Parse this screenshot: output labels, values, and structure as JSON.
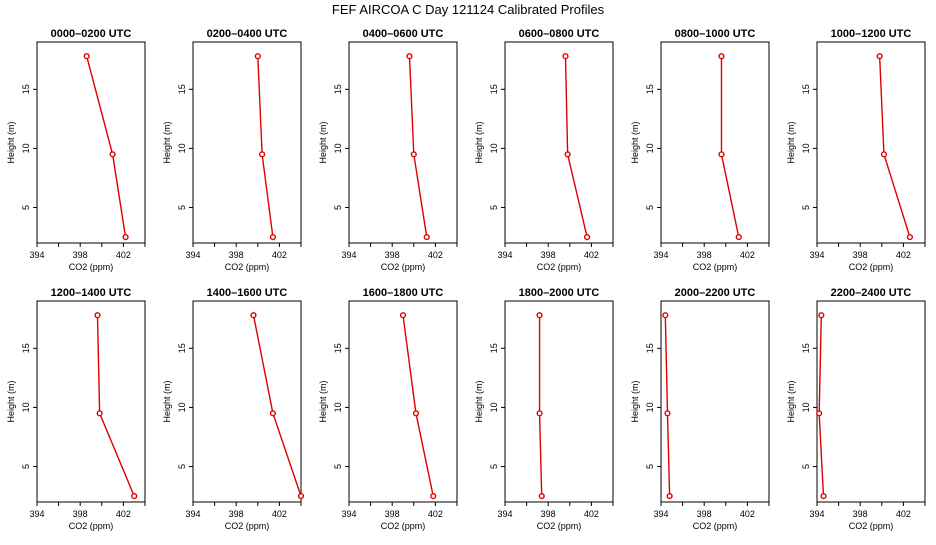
{
  "figure": {
    "title": "FEF AIRCOA C  Day 121124  Calibrated Profiles"
  },
  "colors": {
    "series": "#dd0000",
    "axis": "#000000",
    "background": "#ffffff"
  },
  "chart_data": [
    {
      "type": "line",
      "title": "0000–0200 UTC",
      "xlabel": "CO2 (ppm)",
      "ylabel": "Height (m)",
      "xlim": [
        394,
        404
      ],
      "ylim": [
        2,
        19
      ],
      "xticks": [
        394,
        398,
        402
      ],
      "yticks": [
        5,
        10,
        15
      ],
      "points": [
        {
          "x": 398.6,
          "y": 17.8
        },
        {
          "x": 401.0,
          "y": 9.5
        },
        {
          "x": 402.2,
          "y": 2.5
        }
      ]
    },
    {
      "type": "line",
      "title": "0200–0400 UTC",
      "xlabel": "CO2 (ppm)",
      "ylabel": "Height (m)",
      "xlim": [
        394,
        404
      ],
      "ylim": [
        2,
        19
      ],
      "xticks": [
        394,
        398,
        402
      ],
      "yticks": [
        5,
        10,
        15
      ],
      "points": [
        {
          "x": 400.0,
          "y": 17.8
        },
        {
          "x": 400.4,
          "y": 9.5
        },
        {
          "x": 401.4,
          "y": 2.5
        }
      ]
    },
    {
      "type": "line",
      "title": "0400–0600 UTC",
      "xlabel": "CO2 (ppm)",
      "ylabel": "Height (m)",
      "xlim": [
        394,
        404
      ],
      "ylim": [
        2,
        19
      ],
      "xticks": [
        394,
        398,
        402
      ],
      "yticks": [
        5,
        10,
        15
      ],
      "points": [
        {
          "x": 399.6,
          "y": 17.8
        },
        {
          "x": 400.0,
          "y": 9.5
        },
        {
          "x": 401.2,
          "y": 2.5
        }
      ]
    },
    {
      "type": "line",
      "title": "0600–0800 UTC",
      "xlabel": "CO2 (ppm)",
      "ylabel": "Height (m)",
      "xlim": [
        394,
        404
      ],
      "ylim": [
        2,
        19
      ],
      "xticks": [
        394,
        398,
        402
      ],
      "yticks": [
        5,
        10,
        15
      ],
      "points": [
        {
          "x": 399.6,
          "y": 17.8
        },
        {
          "x": 399.8,
          "y": 9.5
        },
        {
          "x": 401.6,
          "y": 2.5
        }
      ]
    },
    {
      "type": "line",
      "title": "0800–1000 UTC",
      "xlabel": "CO2 (ppm)",
      "ylabel": "Height (m)",
      "xlim": [
        394,
        404
      ],
      "ylim": [
        2,
        19
      ],
      "xticks": [
        394,
        398,
        402
      ],
      "yticks": [
        5,
        10,
        15
      ],
      "points": [
        {
          "x": 399.6,
          "y": 17.8
        },
        {
          "x": 399.6,
          "y": 9.5
        },
        {
          "x": 401.2,
          "y": 2.5
        }
      ]
    },
    {
      "type": "line",
      "title": "1000–1200 UTC",
      "xlabel": "CO2 (ppm)",
      "ylabel": "Height (m)",
      "xlim": [
        394,
        404
      ],
      "ylim": [
        2,
        19
      ],
      "xticks": [
        394,
        398,
        402
      ],
      "yticks": [
        5,
        10,
        15
      ],
      "points": [
        {
          "x": 399.8,
          "y": 17.8
        },
        {
          "x": 400.2,
          "y": 9.5
        },
        {
          "x": 402.6,
          "y": 2.5
        }
      ]
    },
    {
      "type": "line",
      "title": "1200–1400 UTC",
      "xlabel": "CO2 (ppm)",
      "ylabel": "Height (m)",
      "xlim": [
        394,
        404
      ],
      "ylim": [
        2,
        19
      ],
      "xticks": [
        394,
        398,
        402
      ],
      "yticks": [
        5,
        10,
        15
      ],
      "points": [
        {
          "x": 399.6,
          "y": 17.8
        },
        {
          "x": 399.8,
          "y": 9.5
        },
        {
          "x": 403.0,
          "y": 2.5
        }
      ]
    },
    {
      "type": "line",
      "title": "1400–1600 UTC",
      "xlabel": "CO2 (ppm)",
      "ylabel": "Height (m)",
      "xlim": [
        394,
        404
      ],
      "ylim": [
        2,
        19
      ],
      "xticks": [
        394,
        398,
        402
      ],
      "yticks": [
        5,
        10,
        15
      ],
      "points": [
        {
          "x": 399.6,
          "y": 17.8
        },
        {
          "x": 401.4,
          "y": 9.5
        },
        {
          "x": 404.0,
          "y": 2.5
        }
      ]
    },
    {
      "type": "line",
      "title": "1600–1800 UTC",
      "xlabel": "CO2 (ppm)",
      "ylabel": "Height (m)",
      "xlim": [
        394,
        404
      ],
      "ylim": [
        2,
        19
      ],
      "xticks": [
        394,
        398,
        402
      ],
      "yticks": [
        5,
        10,
        15
      ],
      "points": [
        {
          "x": 399.0,
          "y": 17.8
        },
        {
          "x": 400.2,
          "y": 9.5
        },
        {
          "x": 401.8,
          "y": 2.5
        }
      ]
    },
    {
      "type": "line",
      "title": "1800–2000 UTC",
      "xlabel": "CO2 (ppm)",
      "ylabel": "Height (m)",
      "xlim": [
        394,
        404
      ],
      "ylim": [
        2,
        19
      ],
      "xticks": [
        394,
        398,
        402
      ],
      "yticks": [
        5,
        10,
        15
      ],
      "points": [
        {
          "x": 397.2,
          "y": 17.8
        },
        {
          "x": 397.2,
          "y": 9.5
        },
        {
          "x": 397.4,
          "y": 2.5
        }
      ]
    },
    {
      "type": "line",
      "title": "2000–2200 UTC",
      "xlabel": "CO2 (ppm)",
      "ylabel": "Height (m)",
      "xlim": [
        394,
        404
      ],
      "ylim": [
        2,
        19
      ],
      "xticks": [
        394,
        398,
        402
      ],
      "yticks": [
        5,
        10,
        15
      ],
      "points": [
        {
          "x": 394.4,
          "y": 17.8
        },
        {
          "x": 394.6,
          "y": 9.5
        },
        {
          "x": 394.8,
          "y": 2.5
        }
      ]
    },
    {
      "type": "line",
      "title": "2200–2400 UTC",
      "xlabel": "CO2 (ppm)",
      "ylabel": "Height (m)",
      "xlim": [
        394,
        404
      ],
      "ylim": [
        2,
        19
      ],
      "xticks": [
        394,
        398,
        402
      ],
      "yticks": [
        5,
        10,
        15
      ],
      "points": [
        {
          "x": 394.4,
          "y": 17.8
        },
        {
          "x": 394.2,
          "y": 9.5
        },
        {
          "x": 394.6,
          "y": 2.5
        }
      ]
    }
  ]
}
